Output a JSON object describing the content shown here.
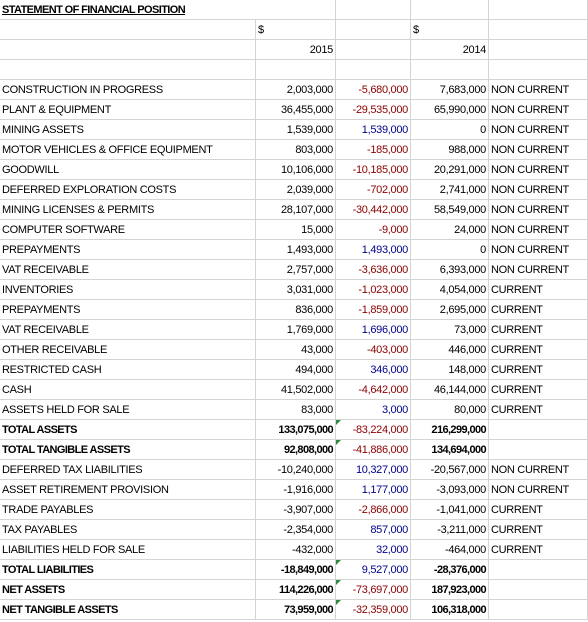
{
  "title": "STATEMENT OF FINANCIAL POSITION",
  "header": {
    "currency": [
      "$",
      "$"
    ],
    "years": [
      "2015",
      "2014"
    ]
  },
  "rows": [
    [
      "CONSTRUCTION IN PROGRESS",
      "2,003,000",
      "-5,680,000",
      "7,683,000",
      "NON CURRENT"
    ],
    [
      "PLANT & EQUIPMENT",
      "36,455,000",
      "-29,535,000",
      "65,990,000",
      "NON CURRENT"
    ],
    [
      "MINING ASSETS",
      "1,539,000",
      "1,539,000",
      "0",
      "NON CURRENT"
    ],
    [
      "MOTOR VEHICLES & OFFICE EQUIPMENT",
      "803,000",
      "-185,000",
      "988,000",
      "NON CURRENT"
    ],
    [
      "GOODWILL",
      "10,106,000",
      "-10,185,000",
      "20,291,000",
      "NON CURRENT"
    ],
    [
      "DEFERRED EXPLORATION COSTS",
      "2,039,000",
      "-702,000",
      "2,741,000",
      "NON CURRENT"
    ],
    [
      "MINING LICENSES & PERMITS",
      "28,107,000",
      "-30,442,000",
      "58,549,000",
      "NON CURRENT"
    ],
    [
      "COMPUTER SOFTWARE",
      "15,000",
      "-9,000",
      "24,000",
      "NON CURRENT"
    ],
    [
      "PREPAYMENTS",
      "1,493,000",
      "1,493,000",
      "0",
      "NON CURRENT"
    ],
    [
      "VAT RECEIVABLE",
      "2,757,000",
      "-3,636,000",
      "6,393,000",
      "NON CURRENT"
    ],
    [
      "INVENTORIES",
      "3,031,000",
      "-1,023,000",
      "4,054,000",
      "CURRENT"
    ],
    [
      "PREPAYMENTS",
      "836,000",
      "-1,859,000",
      "2,695,000",
      "CURRENT"
    ],
    [
      "VAT RECEIVABLE",
      "1,769,000",
      "1,696,000",
      "73,000",
      "CURRENT"
    ],
    [
      "OTHER RECEIVABLE",
      "43,000",
      "-403,000",
      "446,000",
      "CURRENT"
    ],
    [
      "RESTRICTED CASH",
      "494,000",
      "346,000",
      "148,000",
      "CURRENT"
    ],
    [
      "CASH",
      "41,502,000",
      "-4,642,000",
      "46,144,000",
      "CURRENT"
    ],
    [
      "ASSETS HELD FOR SALE",
      "83,000",
      "3,000",
      "80,000",
      "CURRENT"
    ],
    [
      "TOTAL ASSETS",
      "133,075,000",
      "-83,224,000",
      "216,299,000"
    ],
    [
      "TOTAL TANGIBLE ASSETS",
      "92,808,000",
      "-41,886,000",
      "134,694,000"
    ],
    [
      "DEFERRED TAX LIABILITIES",
      "-10,240,000",
      "10,327,000",
      "-20,567,000",
      "NON CURRENT"
    ],
    [
      "ASSET RETIREMENT PROVISION",
      "-1,916,000",
      "1,177,000",
      "-3,093,000",
      "NON CURRENT"
    ],
    [
      "TRADE PAYABLES",
      "-3,907,000",
      "-2,866,000",
      "-1,041,000",
      "CURRENT"
    ],
    [
      "TAX PAYABLES",
      "-2,354,000",
      "857,000",
      "-3,211,000",
      "CURRENT"
    ],
    [
      "LIABILITIES HELD FOR SALE",
      "-432,000",
      "32,000",
      "-464,000",
      "CURRENT"
    ],
    [
      "TOTAL LIABILITIES",
      "-18,849,000",
      "9,527,000",
      "-28,376,000"
    ],
    [
      "NET ASSETS",
      "114,226,000",
      "-73,697,000",
      "187,923,000"
    ],
    [
      "NET TANGIBLE ASSETS",
      "73,959,000",
      "-32,359,000",
      "106,318,000"
    ]
  ]
}
